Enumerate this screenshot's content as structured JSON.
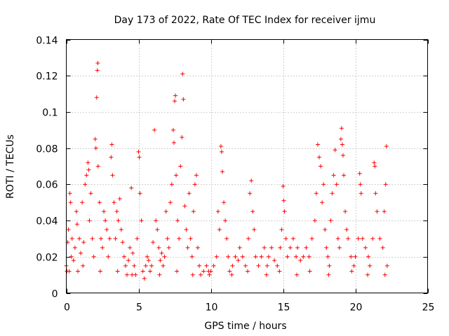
{
  "chart_data": {
    "type": "scatter",
    "title": "Day 173 of 2022, Rate Of TEC Index for receiver ijmu",
    "xlabel": "GPS time / hours",
    "ylabel": "ROTI / TECUs",
    "xlim": [
      0,
      25
    ],
    "ylim": [
      0,
      0.14
    ],
    "xticks": [
      0,
      5,
      10,
      15,
      20,
      25
    ],
    "yticks": [
      0,
      0.02,
      0.04,
      0.06,
      0.08,
      0.1,
      0.12,
      0.14
    ],
    "xtick_labels": [
      "0",
      "5",
      "10",
      "15",
      "20",
      "25"
    ],
    "ytick_labels": [
      "0",
      "0.02",
      "0.04",
      "0.06",
      "0.08",
      "0.1",
      "0.12",
      "0.14"
    ],
    "grid": true,
    "marker": "+",
    "color": "#ff0000",
    "series": [
      {
        "name": "ROTI",
        "points": [
          [
            0.0,
            0.015
          ],
          [
            0.1,
            0.028
          ],
          [
            0.15,
            0.035
          ],
          [
            0.2,
            0.012
          ],
          [
            0.25,
            0.055
          ],
          [
            0.3,
            0.05
          ],
          [
            0.35,
            0.02
          ],
          [
            0.4,
            0.03
          ],
          [
            0.5,
            0.018
          ],
          [
            0.6,
            0.025
          ],
          [
            0.7,
            0.045
          ],
          [
            0.75,
            0.038
          ],
          [
            0.8,
            0.012
          ],
          [
            0.9,
            0.03
          ],
          [
            1.0,
            0.022
          ],
          [
            1.1,
            0.05
          ],
          [
            1.2,
            0.028
          ],
          [
            1.3,
            0.06
          ],
          [
            1.4,
            0.065
          ],
          [
            1.5,
            0.072
          ],
          [
            1.55,
            0.068
          ],
          [
            1.6,
            0.04
          ],
          [
            1.7,
            0.055
          ],
          [
            1.8,
            0.03
          ],
          [
            1.9,
            0.02
          ],
          [
            2.0,
            0.085
          ],
          [
            2.05,
            0.08
          ],
          [
            2.1,
            0.108
          ],
          [
            2.15,
            0.123
          ],
          [
            2.18,
            0.127
          ],
          [
            2.2,
            0.07
          ],
          [
            2.3,
            0.05
          ],
          [
            2.4,
            0.03
          ],
          [
            2.5,
            0.025
          ],
          [
            2.6,
            0.045
          ],
          [
            2.7,
            0.04
          ],
          [
            2.8,
            0.035
          ],
          [
            2.9,
            0.02
          ],
          [
            3.0,
            0.03
          ],
          [
            3.1,
            0.075
          ],
          [
            3.15,
            0.082
          ],
          [
            3.2,
            0.065
          ],
          [
            3.3,
            0.05
          ],
          [
            3.4,
            0.03
          ],
          [
            3.5,
            0.045
          ],
          [
            3.6,
            0.04
          ],
          [
            3.7,
            0.052
          ],
          [
            3.8,
            0.035
          ],
          [
            3.9,
            0.028
          ],
          [
            4.0,
            0.02
          ],
          [
            4.1,
            0.015
          ],
          [
            4.2,
            0.01
          ],
          [
            4.3,
            0.018
          ],
          [
            4.4,
            0.025
          ],
          [
            4.5,
            0.058
          ],
          [
            4.6,
            0.022
          ],
          [
            4.7,
            0.015
          ],
          [
            4.8,
            0.01
          ],
          [
            4.9,
            0.03
          ],
          [
            5.0,
            0.078
          ],
          [
            5.05,
            0.075
          ],
          [
            5.1,
            0.055
          ],
          [
            5.2,
            0.04
          ],
          [
            5.3,
            0.012
          ],
          [
            5.4,
            0.008
          ],
          [
            5.5,
            0.015
          ],
          [
            5.6,
            0.02
          ],
          [
            5.7,
            0.018
          ],
          [
            5.8,
            0.012
          ],
          [
            5.9,
            0.015
          ],
          [
            6.0,
            0.028
          ],
          [
            6.1,
            0.09
          ],
          [
            6.2,
            0.04
          ],
          [
            6.3,
            0.035
          ],
          [
            6.4,
            0.025
          ],
          [
            6.5,
            0.018
          ],
          [
            6.6,
            0.022
          ],
          [
            6.7,
            0.015
          ],
          [
            6.8,
            0.02
          ],
          [
            6.9,
            0.045
          ],
          [
            7.0,
            0.03
          ],
          [
            7.1,
            0.025
          ],
          [
            7.2,
            0.05
          ],
          [
            7.3,
            0.06
          ],
          [
            7.4,
            0.09
          ],
          [
            7.45,
            0.083
          ],
          [
            7.5,
            0.106
          ],
          [
            7.55,
            0.109
          ],
          [
            7.6,
            0.065
          ],
          [
            7.7,
            0.04
          ],
          [
            7.8,
            0.03
          ],
          [
            7.9,
            0.07
          ],
          [
            8.0,
            0.086
          ],
          [
            8.05,
            0.121
          ],
          [
            8.1,
            0.107
          ],
          [
            8.2,
            0.048
          ],
          [
            8.3,
            0.035
          ],
          [
            8.4,
            0.025
          ],
          [
            8.5,
            0.055
          ],
          [
            8.6,
            0.03
          ],
          [
            8.7,
            0.02
          ],
          [
            8.8,
            0.045
          ],
          [
            8.9,
            0.06
          ],
          [
            9.0,
            0.065
          ],
          [
            9.1,
            0.025
          ],
          [
            9.2,
            0.015
          ],
          [
            9.3,
            0.01
          ],
          [
            9.5,
            0.012
          ],
          [
            9.7,
            0.015
          ],
          [
            9.9,
            0.01
          ],
          [
            10.0,
            0.012
          ],
          [
            10.2,
            0.015
          ],
          [
            10.4,
            0.02
          ],
          [
            10.5,
            0.045
          ],
          [
            10.6,
            0.035
          ],
          [
            10.7,
            0.081
          ],
          [
            10.75,
            0.078
          ],
          [
            10.8,
            0.067
          ],
          [
            10.9,
            0.05
          ],
          [
            11.0,
            0.04
          ],
          [
            11.1,
            0.03
          ],
          [
            11.2,
            0.02
          ],
          [
            11.3,
            0.012
          ],
          [
            11.5,
            0.015
          ],
          [
            11.7,
            0.02
          ],
          [
            11.9,
            0.018
          ],
          [
            12.0,
            0.025
          ],
          [
            12.2,
            0.02
          ],
          [
            12.4,
            0.015
          ],
          [
            12.6,
            0.03
          ],
          [
            12.7,
            0.055
          ],
          [
            12.8,
            0.062
          ],
          [
            12.9,
            0.045
          ],
          [
            13.0,
            0.035
          ],
          [
            13.1,
            0.02
          ],
          [
            13.3,
            0.015
          ],
          [
            13.5,
            0.02
          ],
          [
            13.7,
            0.025
          ],
          [
            13.9,
            0.015
          ],
          [
            14.0,
            0.02
          ],
          [
            14.2,
            0.025
          ],
          [
            14.4,
            0.018
          ],
          [
            14.6,
            0.015
          ],
          [
            14.8,
            0.025
          ],
          [
            14.9,
            0.035
          ],
          [
            15.0,
            0.059
          ],
          [
            15.05,
            0.051
          ],
          [
            15.1,
            0.045
          ],
          [
            15.2,
            0.03
          ],
          [
            15.3,
            0.02
          ],
          [
            15.5,
            0.025
          ],
          [
            15.7,
            0.03
          ],
          [
            15.9,
            0.02
          ],
          [
            16.0,
            0.025
          ],
          [
            16.2,
            0.018
          ],
          [
            16.4,
            0.02
          ],
          [
            16.6,
            0.025
          ],
          [
            16.8,
            0.02
          ],
          [
            17.0,
            0.03
          ],
          [
            17.2,
            0.04
          ],
          [
            17.3,
            0.055
          ],
          [
            17.4,
            0.082
          ],
          [
            17.5,
            0.075
          ],
          [
            17.6,
            0.07
          ],
          [
            17.7,
            0.05
          ],
          [
            17.8,
            0.06
          ],
          [
            17.9,
            0.035
          ],
          [
            18.0,
            0.025
          ],
          [
            18.1,
            0.02
          ],
          [
            18.2,
            0.015
          ],
          [
            18.3,
            0.04
          ],
          [
            18.4,
            0.055
          ],
          [
            18.5,
            0.065
          ],
          [
            18.6,
            0.079
          ],
          [
            18.7,
            0.06
          ],
          [
            18.8,
            0.03
          ],
          [
            18.9,
            0.025
          ],
          [
            19.0,
            0.085
          ],
          [
            19.05,
            0.091
          ],
          [
            19.1,
            0.082
          ],
          [
            19.15,
            0.076
          ],
          [
            19.2,
            0.065
          ],
          [
            19.3,
            0.045
          ],
          [
            19.4,
            0.035
          ],
          [
            19.5,
            0.03
          ],
          [
            19.7,
            0.02
          ],
          [
            19.9,
            0.015
          ],
          [
            20.0,
            0.02
          ],
          [
            20.2,
            0.03
          ],
          [
            20.3,
            0.066
          ],
          [
            20.35,
            0.06
          ],
          [
            20.4,
            0.055
          ],
          [
            20.5,
            0.03
          ],
          [
            20.7,
            0.025
          ],
          [
            20.9,
            0.02
          ],
          [
            21.0,
            0.015
          ],
          [
            21.2,
            0.03
          ],
          [
            21.3,
            0.072
          ],
          [
            21.35,
            0.07
          ],
          [
            21.4,
            0.055
          ],
          [
            21.5,
            0.045
          ],
          [
            21.7,
            0.03
          ],
          [
            21.9,
            0.025
          ],
          [
            22.0,
            0.045
          ],
          [
            22.1,
            0.06
          ],
          [
            22.15,
            0.081
          ],
          [
            22.2,
            0.015
          ],
          [
            0.05,
            0.012
          ],
          [
            1.15,
            0.015
          ],
          [
            2.35,
            0.012
          ],
          [
            3.55,
            0.012
          ],
          [
            4.55,
            0.01
          ],
          [
            6.45,
            0.01
          ],
          [
            7.65,
            0.012
          ],
          [
            8.75,
            0.01
          ],
          [
            9.85,
            0.012
          ],
          [
            11.45,
            0.01
          ],
          [
            12.55,
            0.012
          ],
          [
            13.85,
            0.01
          ],
          [
            14.75,
            0.012
          ],
          [
            15.95,
            0.01
          ],
          [
            16.85,
            0.012
          ],
          [
            18.15,
            0.01
          ],
          [
            19.75,
            0.012
          ],
          [
            20.85,
            0.01
          ],
          [
            22.05,
            0.01
          ]
        ]
      }
    ]
  }
}
